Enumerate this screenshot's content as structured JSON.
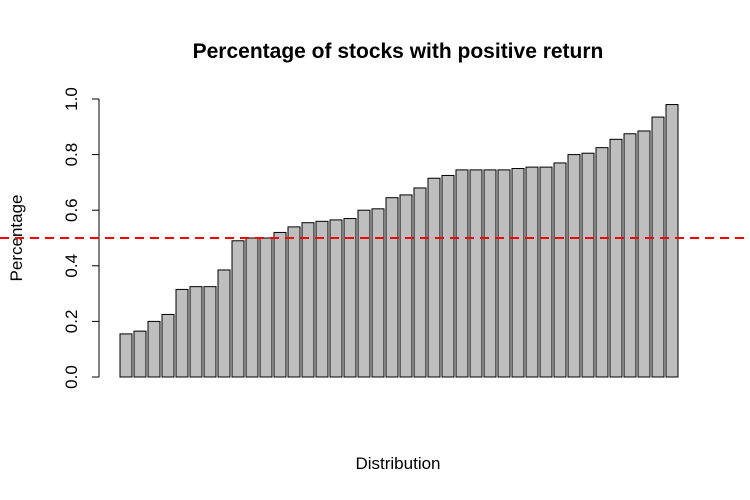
{
  "chart_data": {
    "type": "bar",
    "title": "Percentage of stocks with positive return",
    "xlabel": "Distribution",
    "ylabel": "Percentage",
    "ylim": [
      0,
      1
    ],
    "yticks": [
      "0.0",
      "0.2",
      "0.4",
      "0.6",
      "0.8",
      "1.0"
    ],
    "values": [
      0.155,
      0.165,
      0.2,
      0.225,
      0.315,
      0.325,
      0.325,
      0.385,
      0.49,
      0.5,
      0.5,
      0.52,
      0.54,
      0.555,
      0.56,
      0.565,
      0.57,
      0.6,
      0.605,
      0.645,
      0.655,
      0.68,
      0.715,
      0.725,
      0.745,
      0.745,
      0.745,
      0.745,
      0.75,
      0.755,
      0.755,
      0.77,
      0.8,
      0.805,
      0.825,
      0.855,
      0.875,
      0.885,
      0.935,
      0.98
    ],
    "reference_line": {
      "y": 0.5,
      "style": "dashed"
    },
    "grid": false,
    "legend": "none",
    "colors": {
      "bar_fill": "#bebebe",
      "bar_stroke": "#000000",
      "reference_line": "#ff0000"
    }
  }
}
